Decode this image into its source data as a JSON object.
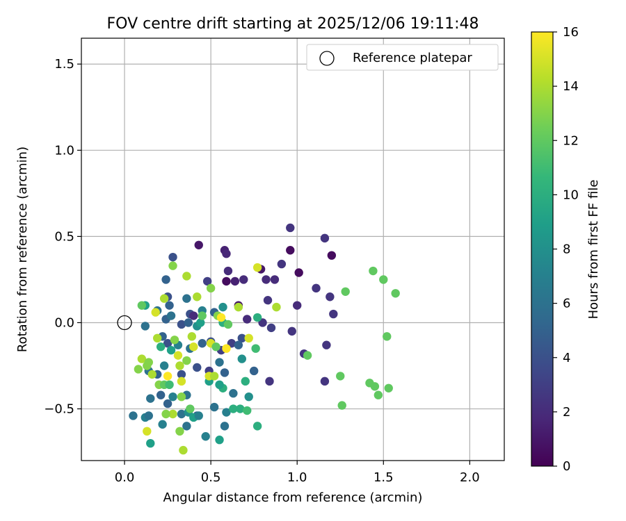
{
  "chart_data": {
    "type": "scatter",
    "title": "FOV centre drift starting at 2025/12/06 19:11:48",
    "xlabel": "Angular distance from reference (arcmin)",
    "ylabel": "Rotation from reference (arcmin)",
    "xlim": [
      -0.25,
      2.2
    ],
    "ylim": [
      -0.8,
      1.65
    ],
    "xticks": [
      0.0,
      0.5,
      1.0,
      1.5,
      2.0
    ],
    "xtick_labels": [
      "0.0",
      "0.5",
      "1.0",
      "1.5",
      "2.0"
    ],
    "yticks": [
      -0.5,
      0.0,
      0.5,
      1.0,
      1.5
    ],
    "ytick_labels": [
      "−0.5",
      "0.0",
      "0.5",
      "1.0",
      "1.5"
    ],
    "grid": true,
    "legend": {
      "position": "top-right",
      "entries": [
        "Reference platepar"
      ]
    },
    "reference_point": {
      "x": 0.0,
      "y": 0.0,
      "label": "Reference platepar",
      "marker": "open-circle"
    },
    "colorbar": {
      "label": "Hours from first FF file",
      "colormap": "viridis",
      "range": [
        0,
        16
      ],
      "ticks": [
        0,
        2,
        4,
        6,
        8,
        10,
        12,
        14,
        16
      ],
      "tick_labels": [
        "0",
        "2",
        "4",
        "6",
        "8",
        "10",
        "12",
        "14",
        "16"
      ],
      "stops": [
        "#440154",
        "#482878",
        "#3e4989",
        "#31688e",
        "#26828e",
        "#1f9e89",
        "#35b779",
        "#6ece58",
        "#b5de2b",
        "#fde725"
      ]
    },
    "points": [
      {
        "x": 0.43,
        "y": 0.45,
        "h": 1.0
      },
      {
        "x": 0.58,
        "y": 0.42,
        "h": 1.5
      },
      {
        "x": 0.59,
        "y": 0.4,
        "h": 1.8
      },
      {
        "x": 0.6,
        "y": 0.3,
        "h": 2.0
      },
      {
        "x": 0.59,
        "y": 0.24,
        "h": 0.5
      },
      {
        "x": 0.64,
        "y": 0.24,
        "h": 1.5
      },
      {
        "x": 0.69,
        "y": 0.25,
        "h": 2.0
      },
      {
        "x": 0.66,
        "y": 0.1,
        "h": 1.0
      },
      {
        "x": 0.71,
        "y": 0.02,
        "h": 2.0
      },
      {
        "x": 0.79,
        "y": 0.31,
        "h": 1.0
      },
      {
        "x": 0.82,
        "y": 0.25,
        "h": 2.0
      },
      {
        "x": 0.87,
        "y": 0.25,
        "h": 2.0
      },
      {
        "x": 0.91,
        "y": 0.34,
        "h": 2.5
      },
      {
        "x": 0.96,
        "y": 0.55,
        "h": 2.5
      },
      {
        "x": 0.96,
        "y": 0.42,
        "h": 0.5
      },
      {
        "x": 1.01,
        "y": 0.29,
        "h": 0.5
      },
      {
        "x": 1.0,
        "y": 0.1,
        "h": 2.0
      },
      {
        "x": 0.83,
        "y": 0.13,
        "h": 2.5
      },
      {
        "x": 0.8,
        "y": 0.0,
        "h": 2.5
      },
      {
        "x": 0.85,
        "y": -0.03,
        "h": 3.0
      },
      {
        "x": 0.97,
        "y": -0.05,
        "h": 2.5
      },
      {
        "x": 1.11,
        "y": 0.2,
        "h": 2.5
      },
      {
        "x": 1.16,
        "y": 0.49,
        "h": 2.5
      },
      {
        "x": 1.2,
        "y": 0.39,
        "h": 0.5
      },
      {
        "x": 1.19,
        "y": 0.15,
        "h": 2.5
      },
      {
        "x": 1.21,
        "y": 0.05,
        "h": 2.5
      },
      {
        "x": 1.17,
        "y": -0.13,
        "h": 2.5
      },
      {
        "x": 1.04,
        "y": -0.18,
        "h": 2.5
      },
      {
        "x": 1.16,
        "y": -0.34,
        "h": 2.5
      },
      {
        "x": 0.84,
        "y": -0.34,
        "h": 2.5
      },
      {
        "x": 0.28,
        "y": 0.38,
        "h": 4.0
      },
      {
        "x": 0.24,
        "y": 0.25,
        "h": 5.0
      },
      {
        "x": 0.48,
        "y": 0.24,
        "h": 3.0
      },
      {
        "x": 0.25,
        "y": 0.15,
        "h": 4.0
      },
      {
        "x": 0.26,
        "y": 0.1,
        "h": 5.0
      },
      {
        "x": 0.36,
        "y": 0.14,
        "h": 6.0
      },
      {
        "x": 0.38,
        "y": 0.05,
        "h": 4.0
      },
      {
        "x": 0.4,
        "y": 0.04,
        "h": 2.0
      },
      {
        "x": 0.45,
        "y": 0.07,
        "h": 7.0
      },
      {
        "x": 0.52,
        "y": 0.06,
        "h": 5.0
      },
      {
        "x": 0.57,
        "y": 0.09,
        "h": 8.0
      },
      {
        "x": 0.19,
        "y": 0.07,
        "h": 6.0
      },
      {
        "x": 0.24,
        "y": 0.02,
        "h": 5.0
      },
      {
        "x": 0.27,
        "y": 0.04,
        "h": 6.0
      },
      {
        "x": 0.33,
        "y": -0.01,
        "h": 4.0
      },
      {
        "x": 0.37,
        "y": 0.0,
        "h": 5.0
      },
      {
        "x": 0.42,
        "y": -0.02,
        "h": 8.0
      },
      {
        "x": 0.12,
        "y": -0.02,
        "h": 6.0
      },
      {
        "x": 0.22,
        "y": -0.08,
        "h": 5.0
      },
      {
        "x": 0.25,
        "y": -0.12,
        "h": 4.0
      },
      {
        "x": 0.31,
        "y": -0.13,
        "h": 7.0
      },
      {
        "x": 0.38,
        "y": -0.15,
        "h": 6.0
      },
      {
        "x": 0.45,
        "y": -0.12,
        "h": 5.0
      },
      {
        "x": 0.5,
        "y": -0.11,
        "h": 4.0
      },
      {
        "x": 0.56,
        "y": -0.16,
        "h": 3.0
      },
      {
        "x": 0.62,
        "y": -0.12,
        "h": 3.0
      },
      {
        "x": 0.68,
        "y": -0.09,
        "h": 4.0
      },
      {
        "x": 0.66,
        "y": -0.13,
        "h": 5.0
      },
      {
        "x": 0.14,
        "y": -0.28,
        "h": 6.0
      },
      {
        "x": 0.19,
        "y": -0.3,
        "h": 5.0
      },
      {
        "x": 0.23,
        "y": -0.25,
        "h": 7.0
      },
      {
        "x": 0.33,
        "y": -0.3,
        "h": 4.0
      },
      {
        "x": 0.42,
        "y": -0.26,
        "h": 4.0
      },
      {
        "x": 0.49,
        "y": -0.28,
        "h": 3.0
      },
      {
        "x": 0.55,
        "y": -0.23,
        "h": 6.0
      },
      {
        "x": 0.58,
        "y": -0.29,
        "h": 5.0
      },
      {
        "x": 0.75,
        "y": -0.28,
        "h": 5.0
      },
      {
        "x": 0.68,
        "y": -0.21,
        "h": 8.0
      },
      {
        "x": 0.15,
        "y": -0.44,
        "h": 6.0
      },
      {
        "x": 0.21,
        "y": -0.42,
        "h": 5.0
      },
      {
        "x": 0.25,
        "y": -0.47,
        "h": 5.0
      },
      {
        "x": 0.28,
        "y": -0.43,
        "h": 7.0
      },
      {
        "x": 0.36,
        "y": -0.42,
        "h": 6.0
      },
      {
        "x": 0.42,
        "y": -0.54,
        "h": 5.0
      },
      {
        "x": 0.52,
        "y": -0.49,
        "h": 6.0
      },
      {
        "x": 0.63,
        "y": -0.41,
        "h": 6.0
      },
      {
        "x": 0.58,
        "y": -0.6,
        "h": 6.0
      },
      {
        "x": 0.59,
        "y": -0.52,
        "h": 7.0
      },
      {
        "x": 0.72,
        "y": -0.43,
        "h": 8.0
      },
      {
        "x": 0.05,
        "y": -0.54,
        "h": 6.0
      },
      {
        "x": 0.12,
        "y": -0.55,
        "h": 7.0
      },
      {
        "x": 0.14,
        "y": -0.54,
        "h": 6.0
      },
      {
        "x": 0.22,
        "y": -0.59,
        "h": 7.0
      },
      {
        "x": 0.33,
        "y": -0.53,
        "h": 6.0
      },
      {
        "x": 0.37,
        "y": -0.52,
        "h": 8.0
      },
      {
        "x": 0.4,
        "y": -0.55,
        "h": 9.0
      },
      {
        "x": 0.43,
        "y": -0.54,
        "h": 7.0
      },
      {
        "x": 0.47,
        "y": -0.66,
        "h": 7.0
      },
      {
        "x": 0.36,
        "y": -0.6,
        "h": 6.0
      },
      {
        "x": 0.15,
        "y": -0.7,
        "h": 9.0
      },
      {
        "x": 0.55,
        "y": -0.68,
        "h": 9.0
      },
      {
        "x": 0.63,
        "y": -0.5,
        "h": 10.0
      },
      {
        "x": 0.67,
        "y": -0.5,
        "h": 10.0
      },
      {
        "x": 0.71,
        "y": -0.51,
        "h": 11.0
      },
      {
        "x": 0.77,
        "y": -0.6,
        "h": 10.0
      },
      {
        "x": 0.57,
        "y": -0.38,
        "h": 10.0
      },
      {
        "x": 0.7,
        "y": -0.34,
        "h": 10.0
      },
      {
        "x": 0.55,
        "y": -0.36,
        "h": 9.0
      },
      {
        "x": 0.49,
        "y": -0.34,
        "h": 9.0
      },
      {
        "x": 0.44,
        "y": 0.0,
        "h": 9.0
      },
      {
        "x": 0.57,
        "y": 0.0,
        "h": 10.0
      },
      {
        "x": 0.77,
        "y": 0.03,
        "h": 10.0
      },
      {
        "x": 0.12,
        "y": 0.1,
        "h": 9.0
      },
      {
        "x": 0.27,
        "y": -0.16,
        "h": 9.0
      },
      {
        "x": 0.21,
        "y": -0.14,
        "h": 10.0
      },
      {
        "x": 0.76,
        "y": -0.15,
        "h": 11.0
      },
      {
        "x": 0.1,
        "y": 0.1,
        "h": 12.0
      },
      {
        "x": 0.28,
        "y": 0.33,
        "h": 13.0
      },
      {
        "x": 0.5,
        "y": 0.2,
        "h": 13.0
      },
      {
        "x": 0.36,
        "y": 0.27,
        "h": 14.0
      },
      {
        "x": 0.77,
        "y": 0.32,
        "h": 15.0
      },
      {
        "x": 0.23,
        "y": 0.14,
        "h": 14.0
      },
      {
        "x": 0.18,
        "y": 0.06,
        "h": 15.0
      },
      {
        "x": 0.42,
        "y": 0.15,
        "h": 14.0
      },
      {
        "x": 0.54,
        "y": 0.04,
        "h": 13.0
      },
      {
        "x": 0.56,
        "y": 0.03,
        "h": 16.0
      },
      {
        "x": 0.66,
        "y": 0.09,
        "h": 14.0
      },
      {
        "x": 0.88,
        "y": 0.09,
        "h": 14.0
      },
      {
        "x": 0.39,
        "y": -0.08,
        "h": 14.0
      },
      {
        "x": 0.4,
        "y": -0.14,
        "h": 15.0
      },
      {
        "x": 0.19,
        "y": -0.09,
        "h": 14.0
      },
      {
        "x": 0.29,
        "y": -0.1,
        "h": 13.0
      },
      {
        "x": 0.31,
        "y": -0.19,
        "h": 15.0
      },
      {
        "x": 0.5,
        "y": -0.12,
        "h": 15.0
      },
      {
        "x": 0.59,
        "y": -0.15,
        "h": 16.0
      },
      {
        "x": 0.72,
        "y": -0.09,
        "h": 15.0
      },
      {
        "x": 0.53,
        "y": -0.14,
        "h": 12.0
      },
      {
        "x": 0.08,
        "y": -0.27,
        "h": 13.0
      },
      {
        "x": 0.1,
        "y": -0.21,
        "h": 14.0
      },
      {
        "x": 0.13,
        "y": -0.25,
        "h": 13.0
      },
      {
        "x": 0.16,
        "y": -0.3,
        "h": 14.0
      },
      {
        "x": 0.2,
        "y": -0.36,
        "h": 13.0
      },
      {
        "x": 0.25,
        "y": -0.31,
        "h": 16.0
      },
      {
        "x": 0.32,
        "y": -0.25,
        "h": 14.0
      },
      {
        "x": 0.36,
        "y": -0.22,
        "h": 13.0
      },
      {
        "x": 0.49,
        "y": -0.31,
        "h": 15.0
      },
      {
        "x": 0.52,
        "y": -0.31,
        "h": 14.0
      },
      {
        "x": 0.33,
        "y": -0.34,
        "h": 15.0
      },
      {
        "x": 0.28,
        "y": -0.53,
        "h": 14.0
      },
      {
        "x": 0.24,
        "y": -0.53,
        "h": 13.0
      },
      {
        "x": 0.13,
        "y": -0.63,
        "h": 15.0
      },
      {
        "x": 0.32,
        "y": -0.63,
        "h": 13.0
      },
      {
        "x": 0.34,
        "y": -0.74,
        "h": 14.0
      },
      {
        "x": 0.38,
        "y": -0.5,
        "h": 12.0
      },
      {
        "x": 0.33,
        "y": -0.43,
        "h": 13.0
      },
      {
        "x": 0.23,
        "y": -0.36,
        "h": 12.0
      },
      {
        "x": 0.26,
        "y": -0.36,
        "h": 11.0
      },
      {
        "x": 0.45,
        "y": 0.04,
        "h": 12.0
      },
      {
        "x": 0.6,
        "y": -0.01,
        "h": 12.0
      },
      {
        "x": 1.06,
        "y": -0.19,
        "h": 12.0
      },
      {
        "x": 1.44,
        "y": 0.3,
        "h": 12.0
      },
      {
        "x": 1.5,
        "y": 0.25,
        "h": 12.0
      },
      {
        "x": 1.28,
        "y": 0.18,
        "h": 12.0
      },
      {
        "x": 1.57,
        "y": 0.17,
        "h": 12.0
      },
      {
        "x": 1.52,
        "y": -0.08,
        "h": 12.0
      },
      {
        "x": 1.25,
        "y": -0.31,
        "h": 12.0
      },
      {
        "x": 1.42,
        "y": -0.35,
        "h": 12.0
      },
      {
        "x": 1.45,
        "y": -0.37,
        "h": 12.0
      },
      {
        "x": 1.47,
        "y": -0.42,
        "h": 12.0
      },
      {
        "x": 1.53,
        "y": -0.38,
        "h": 12.0
      },
      {
        "x": 1.26,
        "y": -0.48,
        "h": 12.0
      },
      {
        "x": 0.14,
        "y": -0.23,
        "h": 13.0
      }
    ]
  }
}
